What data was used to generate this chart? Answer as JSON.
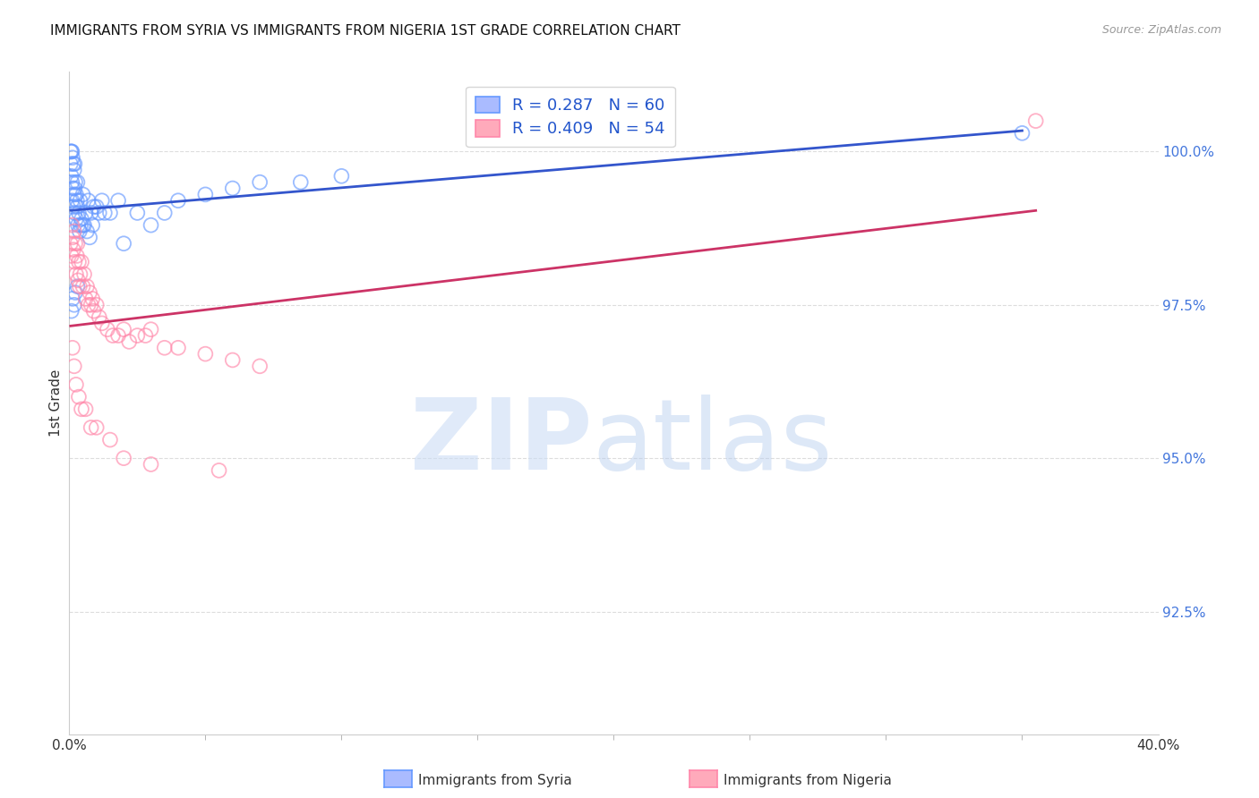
{
  "title": "IMMIGRANTS FROM SYRIA VS IMMIGRANTS FROM NIGERIA 1ST GRADE CORRELATION CHART",
  "source": "Source: ZipAtlas.com",
  "ylabel": "1st Grade",
  "right_yticks": [
    100.0,
    97.5,
    95.0,
    92.5
  ],
  "right_ytick_labels": [
    "100.0%",
    "97.5%",
    "95.0%",
    "92.5%"
  ],
  "xlim": [
    0.0,
    40.0
  ],
  "ylim": [
    90.5,
    101.3
  ],
  "syria_color": "#6699ff",
  "nigeria_color": "#ff88aa",
  "syria_R": 0.287,
  "syria_N": 60,
  "nigeria_R": 0.409,
  "nigeria_N": 54,
  "syria_line_color": "#3355cc",
  "nigeria_line_color": "#cc3366",
  "grid_color": "#dddddd",
  "background_color": "#ffffff",
  "syria_points_x": [
    0.05,
    0.05,
    0.08,
    0.08,
    0.1,
    0.1,
    0.1,
    0.12,
    0.12,
    0.15,
    0.15,
    0.18,
    0.18,
    0.2,
    0.2,
    0.2,
    0.22,
    0.25,
    0.25,
    0.28,
    0.3,
    0.3,
    0.32,
    0.35,
    0.38,
    0.4,
    0.42,
    0.45,
    0.5,
    0.5,
    0.55,
    0.6,
    0.65,
    0.7,
    0.75,
    0.8,
    0.85,
    0.9,
    1.0,
    1.1,
    1.2,
    1.3,
    1.5,
    1.8,
    2.0,
    2.5,
    3.0,
    3.5,
    4.0,
    5.0,
    6.0,
    7.0,
    8.5,
    10.0,
    0.08,
    0.12,
    0.18,
    0.22,
    0.3,
    35.0
  ],
  "syria_points_y": [
    100.0,
    99.8,
    100.0,
    99.6,
    100.0,
    99.5,
    99.2,
    99.9,
    99.4,
    99.8,
    99.1,
    99.7,
    99.3,
    99.8,
    99.4,
    99.0,
    99.5,
    99.3,
    98.9,
    99.2,
    99.5,
    99.1,
    98.8,
    99.0,
    98.7,
    99.2,
    98.8,
    98.9,
    99.3,
    98.8,
    98.8,
    99.0,
    98.7,
    99.2,
    98.6,
    99.0,
    98.8,
    99.1,
    99.1,
    99.0,
    99.2,
    99.0,
    99.0,
    99.2,
    98.5,
    99.0,
    98.8,
    99.0,
    99.2,
    99.3,
    99.4,
    99.5,
    99.5,
    99.6,
    97.4,
    97.6,
    97.5,
    97.7,
    97.8,
    100.3
  ],
  "nigeria_points_x": [
    0.05,
    0.08,
    0.1,
    0.12,
    0.15,
    0.18,
    0.2,
    0.22,
    0.25,
    0.28,
    0.3,
    0.32,
    0.35,
    0.38,
    0.4,
    0.45,
    0.5,
    0.55,
    0.6,
    0.65,
    0.7,
    0.75,
    0.8,
    0.85,
    0.9,
    1.0,
    1.1,
    1.2,
    1.4,
    1.6,
    1.8,
    2.0,
    2.2,
    2.5,
    2.8,
    3.0,
    3.5,
    4.0,
    5.0,
    6.0,
    7.0,
    0.12,
    0.18,
    0.25,
    0.35,
    0.45,
    0.6,
    0.8,
    1.0,
    1.5,
    2.0,
    3.0,
    5.5,
    35.5
  ],
  "nigeria_points_y": [
    98.5,
    98.3,
    98.8,
    98.6,
    98.4,
    98.7,
    98.2,
    98.5,
    98.0,
    98.3,
    98.5,
    97.9,
    98.2,
    97.8,
    98.0,
    98.2,
    97.8,
    98.0,
    97.6,
    97.8,
    97.5,
    97.7,
    97.5,
    97.6,
    97.4,
    97.5,
    97.3,
    97.2,
    97.1,
    97.0,
    97.0,
    97.1,
    96.9,
    97.0,
    97.0,
    97.1,
    96.8,
    96.8,
    96.7,
    96.6,
    96.5,
    96.8,
    96.5,
    96.2,
    96.0,
    95.8,
    95.8,
    95.5,
    95.5,
    95.3,
    95.0,
    94.9,
    94.8,
    100.5
  ]
}
